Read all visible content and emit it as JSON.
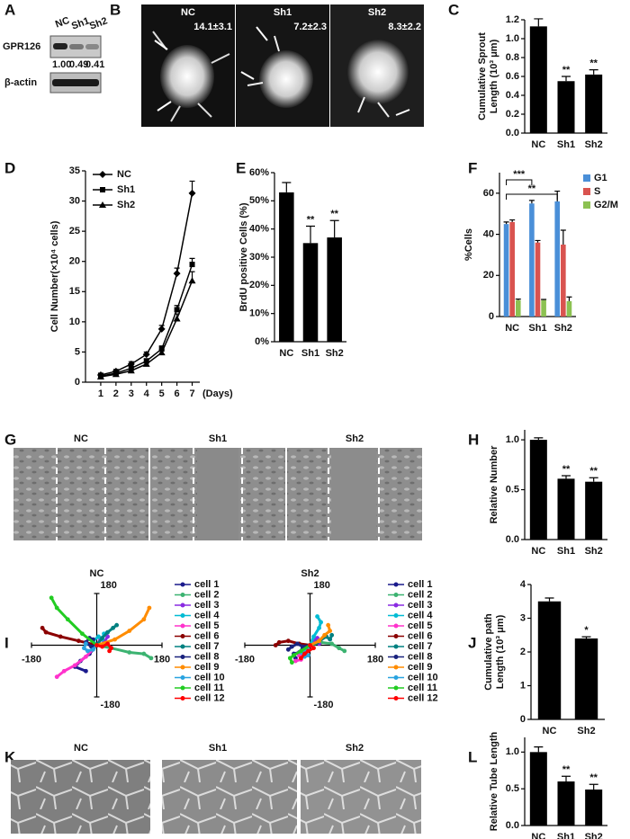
{
  "panel_labels": [
    "A",
    "B",
    "C",
    "D",
    "E",
    "F",
    "G",
    "H",
    "I",
    "J",
    "K",
    "L"
  ],
  "blot": {
    "lanes": [
      "NC",
      "Sh1",
      "Sh2"
    ],
    "rows": [
      "GPR126",
      "β-actin"
    ],
    "quant": [
      "1.00",
      "0.49",
      "0.41"
    ]
  },
  "images_B": {
    "labels": [
      "NC",
      "Sh1",
      "Sh2"
    ],
    "annotations": [
      "14.1±3.1",
      "7.2±2.3",
      "8.3±2.2"
    ]
  },
  "images_G": {
    "labels": [
      "NC",
      "Sh1",
      "Sh2"
    ]
  },
  "images_K": {
    "labels": [
      "NC",
      "Sh1",
      "Sh2"
    ]
  },
  "chart_data": [
    {
      "type": "bar",
      "y_label": [
        "Cumulative Sprout",
        "Length (10³ μm)"
      ],
      "categories": [
        "NC",
        "Sh1",
        "Sh2"
      ],
      "values": [
        1.13,
        0.55,
        0.62
      ],
      "errors": [
        0.08,
        0.05,
        0.05
      ],
      "significance": [
        null,
        "**",
        "**"
      ],
      "color": "#000000",
      "ylim": [
        0,
        1.2
      ],
      "yticks": [
        {
          "value": 0,
          "label": "0.0"
        },
        0.2,
        0.4,
        0.6,
        0.8,
        {
          "value": 1,
          "label": "1.0"
        },
        1.2
      ]
    },
    {
      "type": "line",
      "y_label": [
        "Cell Number(×10⁴ cells)"
      ],
      "x_label": "(Days)",
      "x": [
        1,
        2,
        3,
        4,
        5,
        6,
        7
      ],
      "xlim": [
        0,
        7.5
      ],
      "xticks": [
        1,
        2,
        3,
        4,
        5,
        6,
        7
      ],
      "ylim": [
        0,
        35
      ],
      "yticks": [
        0,
        5,
        10,
        15,
        20,
        25,
        30,
        35
      ],
      "legend": "upper left",
      "series": [
        {
          "name": "NC",
          "color": "#000000",
          "marker": "diamond",
          "values": [
            1.2,
            1.8,
            3.0,
            4.6,
            8.8,
            18.0,
            31.3
          ],
          "errors": [
            0.3,
            0.3,
            0.4,
            0.4,
            0.6,
            0.9,
            2.0
          ]
        },
        {
          "name": "Sh1",
          "color": "#000000",
          "marker": "square",
          "values": [
            1.0,
            1.5,
            2.3,
            3.5,
            5.5,
            12.0,
            19.5
          ],
          "errors": [
            0.3,
            0.3,
            0.3,
            0.4,
            0.5,
            0.7,
            1.0
          ]
        },
        {
          "name": "Sh2",
          "color": "#000000",
          "marker": "triangle",
          "values": [
            0.9,
            1.3,
            1.9,
            3.0,
            4.9,
            10.5,
            16.8
          ],
          "errors": [
            0.3,
            0.3,
            0.3,
            0.3,
            0.5,
            0.8,
            1.5
          ]
        }
      ]
    },
    {
      "type": "bar",
      "y_label": [
        "BrdU positive Cells (%)"
      ],
      "categories": [
        "NC",
        "Sh1",
        "Sh2"
      ],
      "values": [
        53,
        35,
        37
      ],
      "errors": [
        3.5,
        6,
        6
      ],
      "significance": [
        null,
        "**",
        "**"
      ],
      "color": "#000000",
      "ylim": [
        0,
        60
      ],
      "yticks": [
        {
          "value": 0,
          "label": "0%"
        },
        {
          "value": 10,
          "label": "10%"
        },
        {
          "value": 20,
          "label": "20%"
        },
        {
          "value": 30,
          "label": "30%"
        },
        {
          "value": 40,
          "label": "40%"
        },
        {
          "value": 50,
          "label": "50%"
        },
        {
          "value": 60,
          "label": "60%"
        }
      ]
    },
    {
      "type": "grouped_bar",
      "y_label": [
        "%Cells"
      ],
      "categories": [
        "NC",
        "Sh1",
        "Sh2"
      ],
      "ylim": [
        0,
        70
      ],
      "yticks": [
        0,
        20,
        40,
        60
      ],
      "legend": "upper right",
      "bracket_labels": [
        "***",
        "**"
      ],
      "series": [
        {
          "name": "G1",
          "color": "#4a8fd8",
          "values": [
            45,
            55,
            56
          ],
          "errors": [
            1,
            1.5,
            5
          ]
        },
        {
          "name": "S",
          "color": "#d9534f",
          "values": [
            46,
            36,
            35
          ],
          "errors": [
            1,
            1,
            7
          ]
        },
        {
          "name": "G2/M",
          "color": "#8cc152",
          "values": [
            8,
            8,
            7.5
          ],
          "errors": [
            0.5,
            0.3,
            2
          ]
        }
      ]
    },
    {
      "type": "bar",
      "y_label": [
        "Relative Number"
      ],
      "categories": [
        "NC",
        "Sh1",
        "Sh2"
      ],
      "values": [
        1.0,
        0.61,
        0.58
      ],
      "errors": [
        0.02,
        0.03,
        0.04
      ],
      "significance": [
        null,
        "**",
        "**"
      ],
      "color": "#000000",
      "ylim": [
        0,
        1.1
      ],
      "yticks": [
        {
          "value": 0,
          "label": "0.0"
        },
        0.5,
        {
          "value": 1,
          "label": "1.0"
        }
      ]
    },
    {
      "type": "track",
      "title": "NC",
      "xlim": [
        -180,
        180
      ],
      "ylim": [
        -180,
        180
      ],
      "xticks": [
        -180,
        180
      ],
      "yticks": [
        -180,
        180
      ],
      "series": [
        {
          "name": "cell 1",
          "color": "#1a1a8c",
          "x": [
            0,
            -20,
            -45,
            -60,
            -30
          ],
          "y": [
            0,
            -30,
            -55,
            -75,
            -90
          ]
        },
        {
          "name": "cell 2",
          "color": "#3cb371",
          "x": [
            0,
            40,
            90,
            130,
            150
          ],
          "y": [
            0,
            -10,
            -25,
            -30,
            -45
          ]
        },
        {
          "name": "cell 3",
          "color": "#8a2be2",
          "x": [
            0,
            10,
            25,
            30,
            20
          ],
          "y": [
            0,
            20,
            40,
            30,
            10
          ]
        },
        {
          "name": "cell 4",
          "color": "#00bcd4",
          "x": [
            0,
            -10,
            5,
            15,
            20
          ],
          "y": [
            0,
            15,
            30,
            20,
            40
          ]
        },
        {
          "name": "cell 5",
          "color": "#ff33cc",
          "x": [
            0,
            -30,
            -60,
            -90,
            -110
          ],
          "y": [
            0,
            -40,
            -70,
            -90,
            -110
          ]
        },
        {
          "name": "cell 6",
          "color": "#8b0000",
          "x": [
            0,
            -50,
            -100,
            -140,
            -150
          ],
          "y": [
            0,
            15,
            30,
            45,
            60
          ]
        },
        {
          "name": "cell 7",
          "color": "#008080",
          "x": [
            0,
            15,
            30,
            45,
            55
          ],
          "y": [
            0,
            25,
            45,
            60,
            70
          ]
        },
        {
          "name": "cell 8",
          "color": "#1a237e",
          "x": [
            0,
            -15,
            -30,
            -20,
            -10
          ],
          "y": [
            0,
            -5,
            10,
            25,
            20
          ]
        },
        {
          "name": "cell 9",
          "color": "#ff8c00",
          "x": [
            0,
            50,
            90,
            130,
            145
          ],
          "y": [
            0,
            20,
            50,
            90,
            130
          ]
        },
        {
          "name": "cell 10",
          "color": "#29a3e0",
          "x": [
            0,
            -10,
            -25,
            -35,
            -30
          ],
          "y": [
            0,
            -15,
            -20,
            -10,
            5
          ]
        },
        {
          "name": "cell 11",
          "color": "#22cc22",
          "x": [
            0,
            -40,
            -80,
            -110,
            -125
          ],
          "y": [
            0,
            40,
            90,
            130,
            165
          ]
        },
        {
          "name": "cell 12",
          "color": "#ff0000",
          "x": [
            0,
            15,
            30,
            40,
            35
          ],
          "y": [
            0,
            -5,
            5,
            -10,
            -20
          ]
        }
      ]
    },
    {
      "type": "track",
      "title": "Sh2",
      "xlim": [
        -180,
        180
      ],
      "ylim": [
        -180,
        180
      ],
      "xticks": [
        -180,
        180
      ],
      "yticks": [
        -180,
        180
      ],
      "series": [
        {
          "name": "cell 1",
          "color": "#1a1a8c",
          "x": [
            0,
            -20,
            -30,
            -45,
            -40
          ],
          "y": [
            0,
            -10,
            -25,
            -30,
            -45
          ]
        },
        {
          "name": "cell 2",
          "color": "#3cb371",
          "x": [
            0,
            30,
            60,
            80,
            95
          ],
          "y": [
            0,
            10,
            5,
            -10,
            -20
          ]
        },
        {
          "name": "cell 3",
          "color": "#8a2be2",
          "x": [
            0,
            10,
            20,
            15,
            25
          ],
          "y": [
            0,
            15,
            25,
            10,
            5
          ]
        },
        {
          "name": "cell 4",
          "color": "#00bcd4",
          "x": [
            0,
            10,
            25,
            30,
            20
          ],
          "y": [
            0,
            30,
            60,
            80,
            100
          ]
        },
        {
          "name": "cell 5",
          "color": "#ff33cc",
          "x": [
            0,
            -15,
            -30,
            -25,
            -40
          ],
          "y": [
            0,
            -20,
            -35,
            -50,
            -55
          ]
        },
        {
          "name": "cell 6",
          "color": "#8b0000",
          "x": [
            0,
            -30,
            -60,
            -85,
            -95
          ],
          "y": [
            0,
            5,
            15,
            10,
            0
          ]
        },
        {
          "name": "cell 7",
          "color": "#008080",
          "x": [
            0,
            20,
            45,
            55,
            60
          ],
          "y": [
            0,
            10,
            30,
            20,
            35
          ]
        },
        {
          "name": "cell 8",
          "color": "#1a237e",
          "x": [
            0,
            -20,
            -35,
            -50,
            -60
          ],
          "y": [
            0,
            -5,
            5,
            -5,
            -15
          ]
        },
        {
          "name": "cell 9",
          "color": "#ff8c00",
          "x": [
            0,
            25,
            40,
            55,
            50
          ],
          "y": [
            0,
            15,
            35,
            50,
            70
          ]
        },
        {
          "name": "cell 10",
          "color": "#29a3e0",
          "x": [
            0,
            -10,
            -25,
            -15,
            -5
          ],
          "y": [
            0,
            -15,
            -25,
            -40,
            -35
          ]
        },
        {
          "name": "cell 11",
          "color": "#22cc22",
          "x": [
            0,
            -25,
            -45,
            -55,
            -50
          ],
          "y": [
            0,
            -20,
            -35,
            -45,
            -60
          ]
        },
        {
          "name": "cell 12",
          "color": "#ff0000",
          "x": [
            0,
            10,
            -5,
            -15,
            -25
          ],
          "y": [
            0,
            -10,
            -20,
            -30,
            -45
          ]
        }
      ]
    },
    {
      "type": "bar",
      "y_label": [
        "Cumulative path",
        "Length (10³ μm)"
      ],
      "categories": [
        "NC",
        "Sh2"
      ],
      "values": [
        3.5,
        2.4
      ],
      "errors": [
        0.1,
        0.05
      ],
      "significance": [
        null,
        "*"
      ],
      "color": "#000000",
      "ylim": [
        0,
        4
      ],
      "yticks": [
        0,
        1,
        2,
        3,
        4
      ]
    },
    {
      "type": "bar",
      "y_label": [
        "Relative Tube Length"
      ],
      "categories": [
        "NC",
        "Sh1",
        "Sh2"
      ],
      "values": [
        1.0,
        0.6,
        0.49
      ],
      "errors": [
        0.07,
        0.07,
        0.07
      ],
      "significance": [
        null,
        "**",
        "**"
      ],
      "color": "#000000",
      "ylim": [
        0,
        1.2
      ],
      "yticks": [
        {
          "value": 0,
          "label": "0.0"
        },
        0.5,
        {
          "value": 1,
          "label": "1.0"
        }
      ]
    }
  ]
}
